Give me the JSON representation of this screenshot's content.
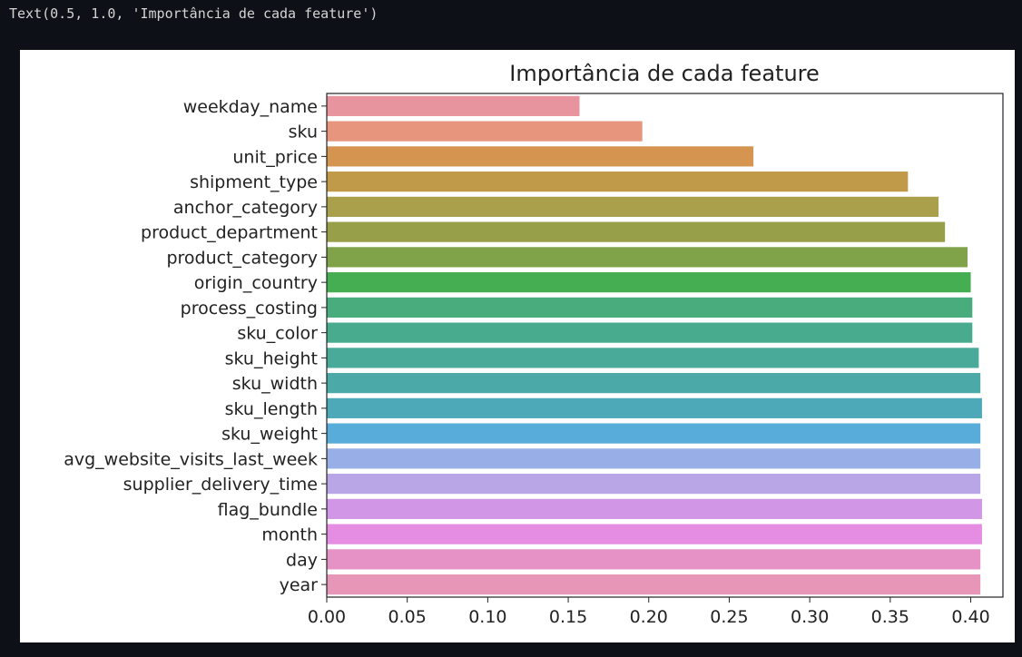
{
  "output_text": "Text(0.5, 1.0, 'Importância de cada feature')",
  "chart_data": {
    "type": "bar",
    "orientation": "horizontal",
    "title": "Importância de cada feature",
    "xlabel": "",
    "ylabel": "",
    "xlim": [
      0,
      0.42
    ],
    "xticks": [
      "0.00",
      "0.05",
      "0.10",
      "0.15",
      "0.20",
      "0.25",
      "0.30",
      "0.35",
      "0.40"
    ],
    "grid": false,
    "categories": [
      "weekday_name",
      "sku",
      "unit_price",
      "shipment_type",
      "anchor_category",
      "product_department",
      "product_category",
      "origin_country",
      "process_costing",
      "sku_color",
      "sku_height",
      "sku_width",
      "sku_length",
      "sku_weight",
      "avg_website_visits_last_week",
      "supplier_delivery_time",
      "flag_bundle",
      "month",
      "day",
      "year"
    ],
    "values": [
      0.157,
      0.196,
      0.265,
      0.361,
      0.38,
      0.384,
      0.398,
      0.4,
      0.401,
      0.401,
      0.405,
      0.406,
      0.407,
      0.406,
      0.406,
      0.406,
      0.407,
      0.407,
      0.406,
      0.406
    ],
    "colors": [
      "#e8949e",
      "#e8957e",
      "#d59550",
      "#c09a48",
      "#aa9f4a",
      "#979f48",
      "#80a34a",
      "#45ad52",
      "#48ac7d",
      "#49ab8e",
      "#4aaa9a",
      "#4ba9a7",
      "#4da9b8",
      "#58acd9",
      "#97aee6",
      "#b8a6e6",
      "#d196e6",
      "#e58de2",
      "#e692c7",
      "#e896b8"
    ]
  }
}
